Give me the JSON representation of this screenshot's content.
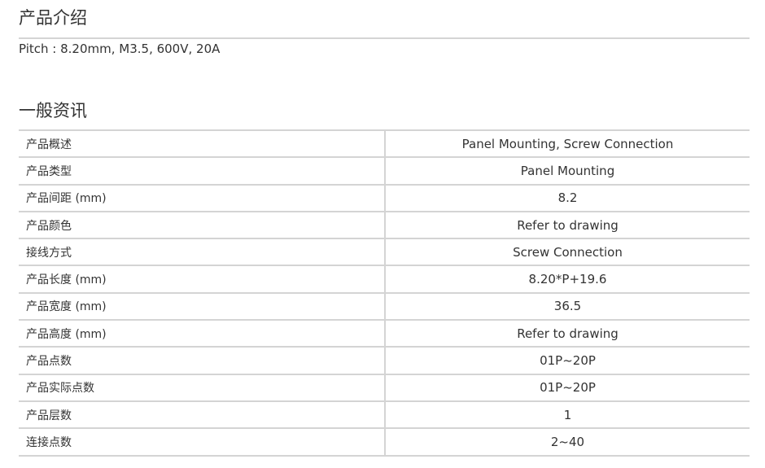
{
  "intro": {
    "title": "产品介绍",
    "text": "Pitch : 8.20mm, M3.5, 600V, 20A"
  },
  "general": {
    "title": "一般资讯",
    "rows": [
      {
        "label": "产品概述",
        "value": "Panel Mounting, Screw Connection"
      },
      {
        "label": "产品类型",
        "value": "Panel Mounting"
      },
      {
        "label": "产品间距 (mm)",
        "value": "8.2"
      },
      {
        "label": "产品颜色",
        "value": "Refer to drawing"
      },
      {
        "label": "接线方式",
        "value": "Screw Connection"
      },
      {
        "label": "产品长度 (mm)",
        "value": "8.20*P+19.6"
      },
      {
        "label": "产品宽度 (mm)",
        "value": "36.5"
      },
      {
        "label": "产品高度 (mm)",
        "value": "Refer to drawing"
      },
      {
        "label": "产品点数",
        "value": "01P~20P"
      },
      {
        "label": "产品实际点数",
        "value": "01P~20P"
      },
      {
        "label": "产品层数",
        "value": "1"
      },
      {
        "label": "连接点数",
        "value": "2~40"
      }
    ]
  }
}
